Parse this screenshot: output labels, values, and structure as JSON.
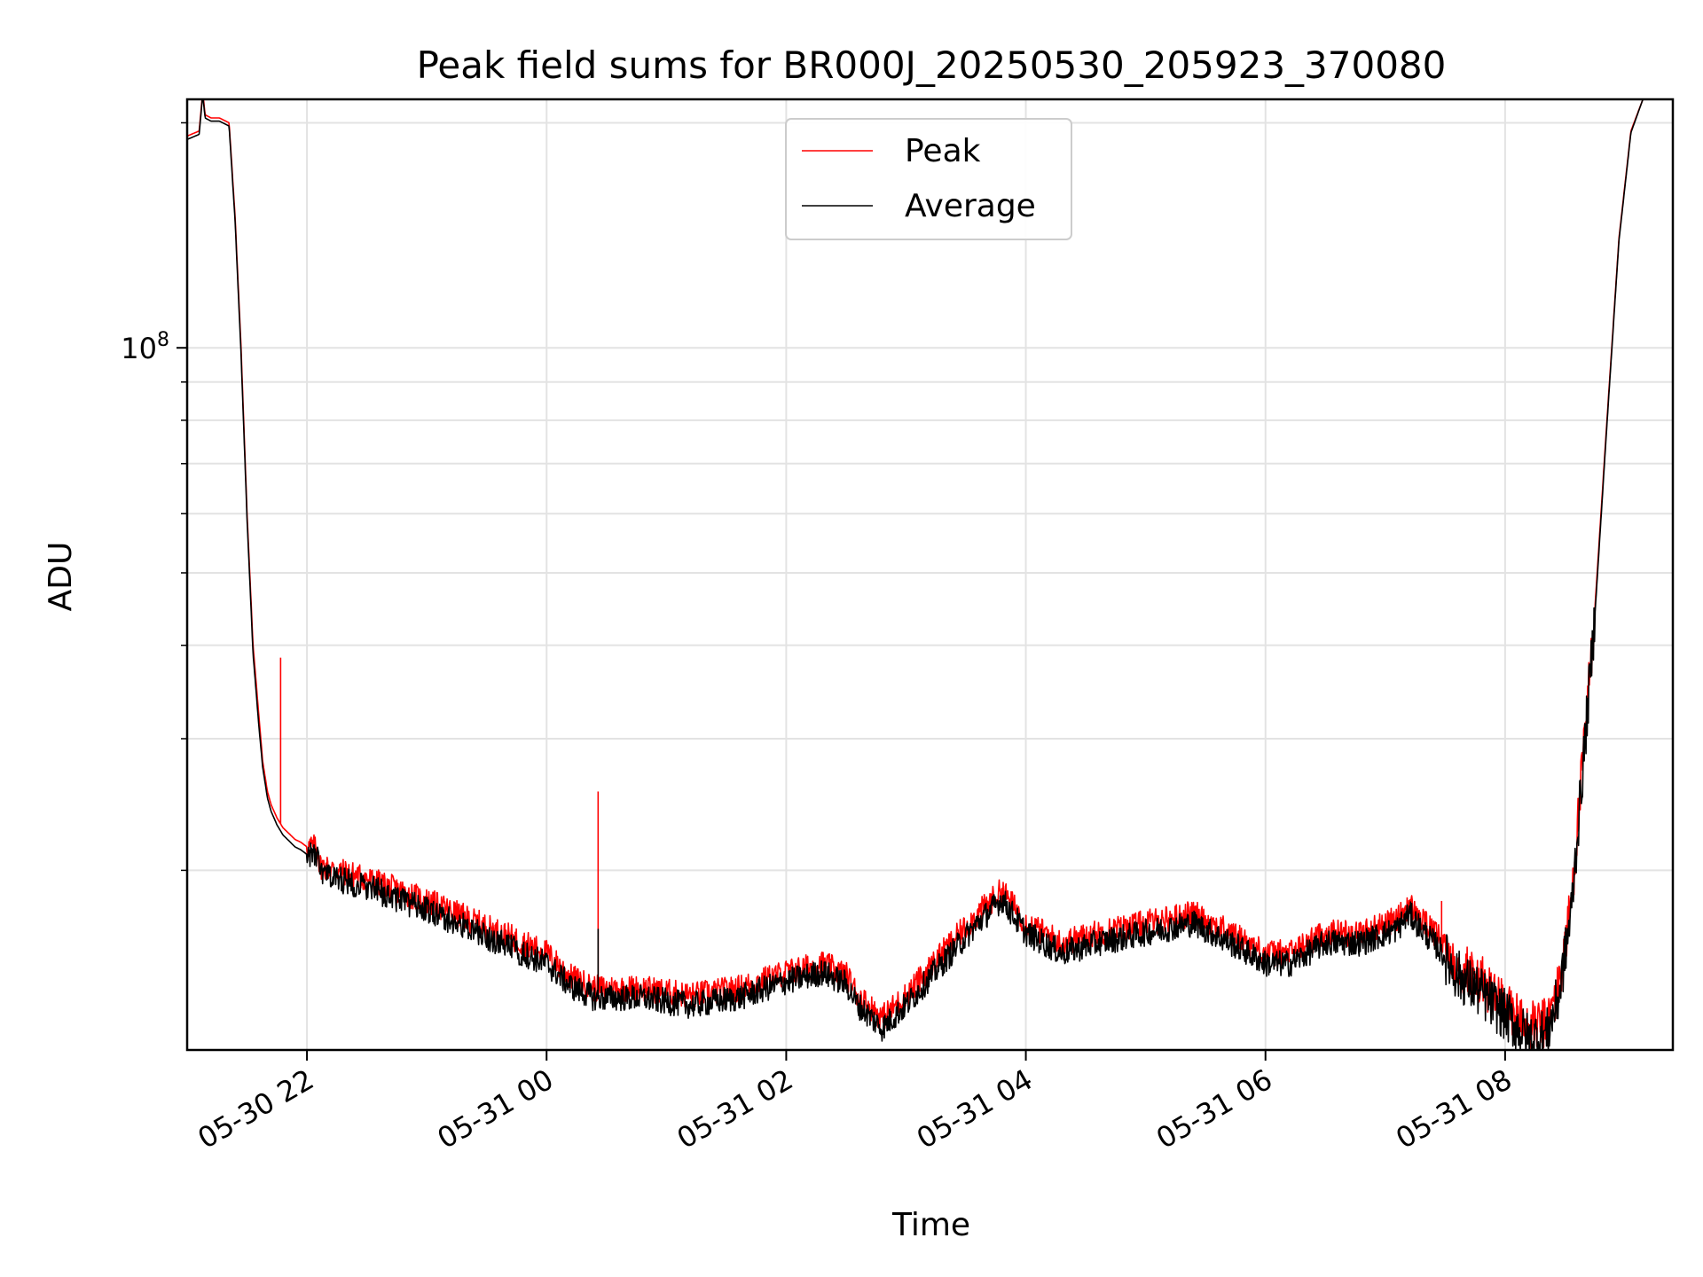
{
  "chart_data": {
    "type": "line",
    "title": "Peak field sums for BR000J_20250530_205923_370080",
    "xlabel": "Time",
    "ylabel": "ADU",
    "y_scale": "log",
    "x_units": "hours since 2025-05-30 00:00",
    "xlim": [
      21.0,
      33.4
    ],
    "ylim": [
      11500000,
      215000000
    ],
    "x_ticks": [
      {
        "value": 22,
        "label": "05-30 22"
      },
      {
        "value": 24,
        "label": "05-31 00"
      },
      {
        "value": 26,
        "label": "05-31 02"
      },
      {
        "value": 28,
        "label": "05-31 04"
      },
      {
        "value": 30,
        "label": "05-31 06"
      },
      {
        "value": 32,
        "label": "05-31 08"
      }
    ],
    "y_major_ticks": [
      {
        "value": 100000000,
        "base": "10",
        "exponent": "8"
      }
    ],
    "y_minor_ticks": [
      20000000,
      30000000,
      40000000,
      50000000,
      60000000,
      70000000,
      80000000,
      90000000,
      200000000
    ],
    "grid": true,
    "legend_position": "top-center",
    "series": [
      {
        "name": "Peak",
        "color": "#ff0000",
        "x": [
          21.0,
          21.1,
          21.13,
          21.15,
          21.2,
          21.27,
          21.35,
          21.4,
          21.45,
          21.5,
          21.55,
          21.6,
          21.63,
          21.67,
          21.7,
          21.75,
          21.8,
          21.85,
          21.9,
          21.95,
          22.0,
          22.05,
          22.1,
          22.1,
          22.5,
          23.0,
          23.5,
          24.0,
          24.2,
          24.4,
          24.8,
          25.2,
          25.6,
          26.0,
          26.3,
          26.5,
          26.6,
          26.8,
          27.0,
          27.3,
          27.6,
          27.8,
          28.0,
          28.3,
          28.6,
          29.0,
          29.4,
          29.8,
          30.0,
          30.2,
          30.5,
          30.8,
          31.1,
          31.2,
          31.3,
          31.45,
          31.6,
          31.8,
          32.0,
          32.2,
          32.35,
          32.45,
          32.55,
          32.65,
          32.75,
          32.85,
          32.95,
          33.05,
          33.15,
          33.25,
          33.4
        ],
        "y": [
          192000000,
          195000000,
          220000000,
          205000000,
          203000000,
          203000000,
          200000000,
          150000000,
          100000000,
          60000000,
          40000000,
          32000000,
          28000000,
          25500000,
          24500000,
          23500000,
          22800000,
          22400000,
          22000000,
          21800000,
          21500000,
          21500000,
          21200000,
          20300000,
          19500000,
          18200000,
          16800000,
          15500000,
          14400000,
          13900000,
          13900000,
          13600000,
          13900000,
          14600000,
          15000000,
          14500000,
          13600000,
          12700000,
          13600000,
          15500000,
          17500000,
          18800000,
          17000000,
          16000000,
          16500000,
          17000000,
          17500000,
          16200000,
          15500000,
          15500000,
          16500000,
          16500000,
          17200000,
          18000000,
          17200000,
          16200000,
          15000000,
          14200000,
          13200000,
          12300000,
          12500000,
          14000000,
          18000000,
          28000000,
          45000000,
          80000000,
          140000000,
          195000000,
          215000000,
          215000000,
          215000000
        ],
        "spikes": [
          {
            "x": 21.78,
            "y": 38500000
          },
          {
            "x": 24.43,
            "y": 25500000
          },
          {
            "x": 31.47,
            "y": 18200000
          }
        ]
      },
      {
        "name": "Average",
        "color": "#000000",
        "x": [
          21.0,
          21.1,
          21.13,
          21.15,
          21.2,
          21.27,
          21.35,
          21.4,
          21.45,
          21.5,
          21.55,
          21.6,
          21.63,
          21.67,
          21.7,
          21.75,
          21.8,
          21.85,
          21.9,
          21.95,
          22.0,
          22.05,
          22.1,
          22.1,
          22.5,
          23.0,
          23.5,
          24.0,
          24.2,
          24.4,
          24.8,
          25.2,
          25.6,
          26.0,
          26.3,
          26.5,
          26.6,
          26.8,
          27.0,
          27.3,
          27.6,
          27.8,
          28.0,
          28.3,
          28.6,
          29.0,
          29.4,
          29.8,
          30.0,
          30.2,
          30.5,
          30.8,
          31.1,
          31.2,
          31.3,
          31.45,
          31.6,
          31.8,
          32.0,
          32.2,
          32.35,
          32.45,
          32.55,
          32.65,
          32.75,
          32.85,
          32.95,
          33.05,
          33.15,
          33.25,
          33.4
        ],
        "y": [
          190000000,
          193000000,
          218000000,
          203000000,
          201000000,
          201000000,
          198000000,
          148000000,
          98000000,
          59000000,
          39000000,
          31000000,
          27500000,
          25000000,
          24000000,
          23000000,
          22300000,
          21900000,
          21500000,
          21300000,
          21000000,
          21000000,
          20700000,
          19800000,
          19000000,
          17700000,
          16300000,
          15000000,
          14000000,
          13500000,
          13500000,
          13200000,
          13500000,
          14200000,
          14600000,
          14100000,
          13200000,
          12300000,
          13200000,
          15000000,
          17000000,
          18300000,
          16500000,
          15500000,
          16000000,
          16500000,
          17000000,
          15700000,
          15000000,
          15000000,
          16000000,
          16000000,
          16700000,
          17500000,
          16700000,
          15700000,
          14500000,
          13700000,
          12800000,
          11900000,
          12100000,
          13600000,
          17500000,
          27500000,
          44000000,
          79000000,
          139000000,
          194000000,
          215000000,
          215000000,
          215000000
        ],
        "spikes": [
          {
            "x": 24.43,
            "y": 16700000
          }
        ]
      }
    ]
  }
}
